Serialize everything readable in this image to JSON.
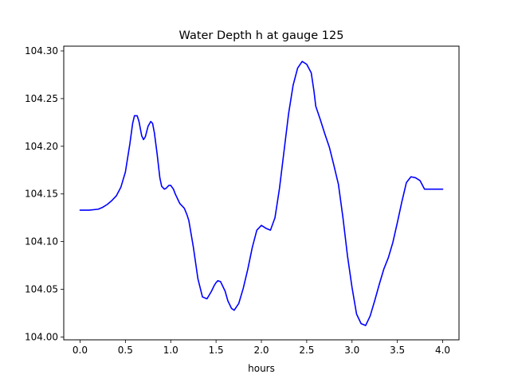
{
  "chart_data": {
    "type": "line",
    "title": "Water Depth h at gauge 125",
    "xlabel": "hours",
    "ylabel": "",
    "xlim": [
      -0.18,
      4.18
    ],
    "ylim": [
      103.997,
      104.305
    ],
    "xticks": [
      0.0,
      0.5,
      1.0,
      1.5,
      2.0,
      2.5,
      3.0,
      3.5,
      4.0
    ],
    "xtick_labels": [
      "0.0",
      "0.5",
      "1.0",
      "1.5",
      "2.0",
      "2.5",
      "3.0",
      "3.5",
      "4.0"
    ],
    "yticks": [
      104.0,
      104.05,
      104.1,
      104.15,
      104.2,
      104.25,
      104.3
    ],
    "ytick_labels": [
      "104.00",
      "104.05",
      "104.10",
      "104.15",
      "104.20",
      "104.25",
      "104.30"
    ],
    "grid": false,
    "legend": "none",
    "series": [
      {
        "color": "#0000ff",
        "x": [
          0.0,
          0.05,
          0.1,
          0.2,
          0.25,
          0.3,
          0.35,
          0.4,
          0.45,
          0.5,
          0.55,
          0.58,
          0.6,
          0.63,
          0.65,
          0.68,
          0.7,
          0.72,
          0.75,
          0.78,
          0.8,
          0.82,
          0.85,
          0.88,
          0.9,
          0.93,
          0.95,
          0.98,
          1.0,
          1.03,
          1.05,
          1.08,
          1.1,
          1.12,
          1.15,
          1.18,
          1.2,
          1.25,
          1.3,
          1.35,
          1.4,
          1.45,
          1.48,
          1.5,
          1.52,
          1.55,
          1.6,
          1.63,
          1.67,
          1.7,
          1.75,
          1.8,
          1.85,
          1.9,
          1.95,
          2.0,
          2.05,
          2.1,
          2.15,
          2.2,
          2.25,
          2.3,
          2.35,
          2.4,
          2.45,
          2.5,
          2.55,
          2.58,
          2.6,
          2.65,
          2.7,
          2.75,
          2.8,
          2.85,
          2.9,
          2.95,
          3.0,
          3.05,
          3.1,
          3.15,
          3.2,
          3.25,
          3.3,
          3.35,
          3.4,
          3.45,
          3.5,
          3.55,
          3.6,
          3.65,
          3.7,
          3.75,
          3.8,
          3.85,
          3.9,
          3.95,
          4.0
        ],
        "y": [
          104.133,
          104.133,
          104.133,
          104.134,
          104.136,
          104.139,
          104.143,
          104.148,
          104.157,
          104.173,
          104.203,
          104.224,
          104.232,
          104.232,
          104.226,
          104.211,
          104.207,
          104.21,
          104.221,
          104.226,
          104.224,
          104.214,
          104.192,
          104.167,
          104.158,
          104.155,
          104.156,
          104.159,
          104.159,
          104.155,
          104.15,
          104.144,
          104.14,
          104.138,
          104.135,
          104.128,
          104.122,
          104.094,
          104.061,
          104.042,
          104.04,
          104.048,
          104.054,
          104.057,
          104.059,
          104.058,
          104.048,
          104.038,
          104.03,
          104.028,
          104.035,
          104.051,
          104.071,
          104.094,
          104.112,
          104.117,
          104.114,
          104.112,
          104.125,
          104.156,
          104.195,
          104.234,
          104.264,
          104.282,
          104.289,
          104.286,
          104.277,
          104.258,
          104.242,
          104.228,
          104.213,
          104.199,
          104.18,
          104.16,
          104.125,
          104.085,
          104.052,
          104.024,
          104.014,
          104.012,
          104.022,
          104.038,
          104.055,
          104.071,
          104.083,
          104.099,
          104.12,
          104.142,
          104.162,
          104.168,
          104.167,
          104.164,
          104.155,
          104.155,
          104.155,
          104.155,
          104.155
        ]
      }
    ]
  }
}
